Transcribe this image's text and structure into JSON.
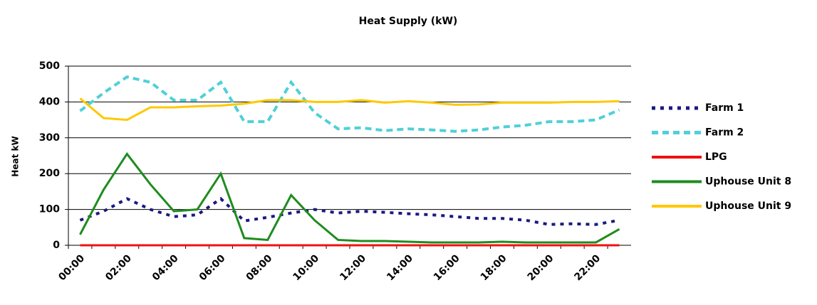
{
  "chart_data": {
    "type": "line",
    "title": "Heat Supply (kW)",
    "y_label": "Heat kW",
    "categories": [
      "00:00",
      null,
      "02:00",
      null,
      "04:00",
      null,
      "06:00",
      null,
      "08:00",
      null,
      "10:00",
      null,
      "12:00",
      null,
      "14:00",
      null,
      "16:00",
      null,
      "18:00",
      null,
      "20:00",
      null,
      "22:00",
      null
    ],
    "series": [
      {
        "name": "Farm 1",
        "color": "#1a1a80",
        "style": "dotted",
        "values": [
          70,
          95,
          130,
          100,
          80,
          85,
          130,
          68,
          78,
          90,
          100,
          90,
          95,
          92,
          88,
          85,
          80,
          75,
          75,
          70,
          58,
          60,
          58,
          70
        ]
      },
      {
        "name": "Farm 2",
        "color": "#4fd0d8",
        "style": "dashed",
        "values": [
          375,
          425,
          470,
          455,
          405,
          405,
          455,
          345,
          345,
          455,
          370,
          325,
          328,
          320,
          325,
          322,
          318,
          322,
          330,
          335,
          345,
          345,
          350,
          378
        ]
      },
      {
        "name": "LPG",
        "color": "#ee1111",
        "style": "solid",
        "values": [
          0,
          0,
          0,
          0,
          0,
          0,
          0,
          0,
          0,
          0,
          0,
          0,
          0,
          0,
          0,
          0,
          0,
          0,
          0,
          0,
          0,
          0,
          0,
          0
        ]
      },
      {
        "name": "Uphouse Unit 8",
        "color": "#1e8c1e",
        "style": "solid",
        "values": [
          30,
          155,
          255,
          170,
          95,
          100,
          200,
          20,
          15,
          140,
          70,
          15,
          12,
          12,
          10,
          8,
          8,
          8,
          10,
          8,
          8,
          8,
          8,
          45
        ]
      },
      {
        "name": "Uphouse Unit 9",
        "color": "#ffc800",
        "style": "solid",
        "values": [
          410,
          355,
          350,
          385,
          385,
          388,
          390,
          395,
          405,
          405,
          400,
          400,
          405,
          398,
          402,
          398,
          392,
          393,
          398,
          398,
          398,
          400,
          400,
          402
        ]
      }
    ],
    "ylim": [
      0,
      500
    ],
    "yticks": [
      0,
      100,
      200,
      300,
      400,
      500
    ],
    "grid": true,
    "legend": "right"
  }
}
